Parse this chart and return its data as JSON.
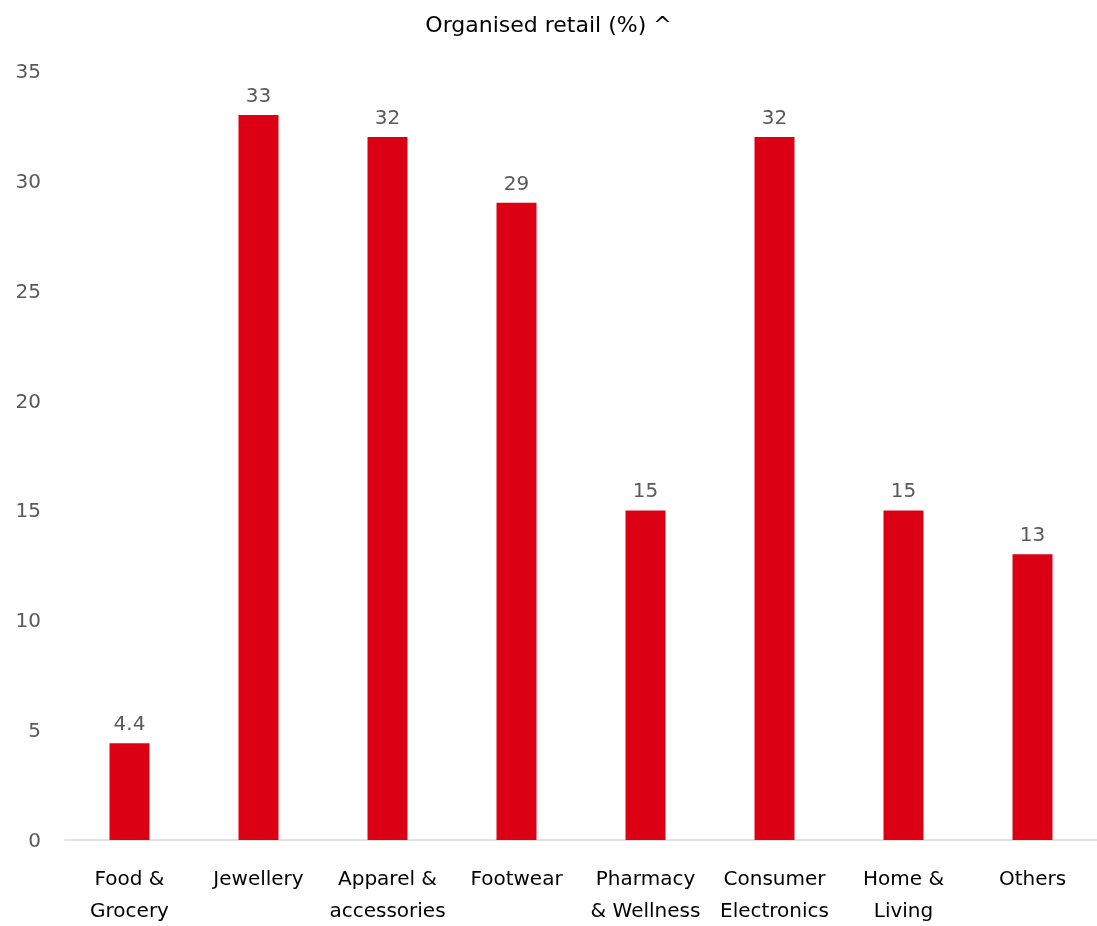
{
  "chart_data": {
    "type": "bar",
    "title": "Organised retail (%) ^",
    "categories": [
      "Food &\nGrocery",
      "Jewellery",
      "Apparel &\naccessories",
      "Footwear",
      "Pharmacy\n& Wellness",
      "Consumer\nElectronics",
      "Home &\nLiving",
      "Others"
    ],
    "values": [
      4.4,
      33,
      32,
      29,
      15,
      32,
      15,
      13
    ],
    "color": "#dc0014",
    "ylim": [
      0,
      35
    ],
    "yticks": [
      0,
      5,
      10,
      15,
      20,
      25,
      30,
      35
    ],
    "data_labels": true,
    "grid": false
  }
}
